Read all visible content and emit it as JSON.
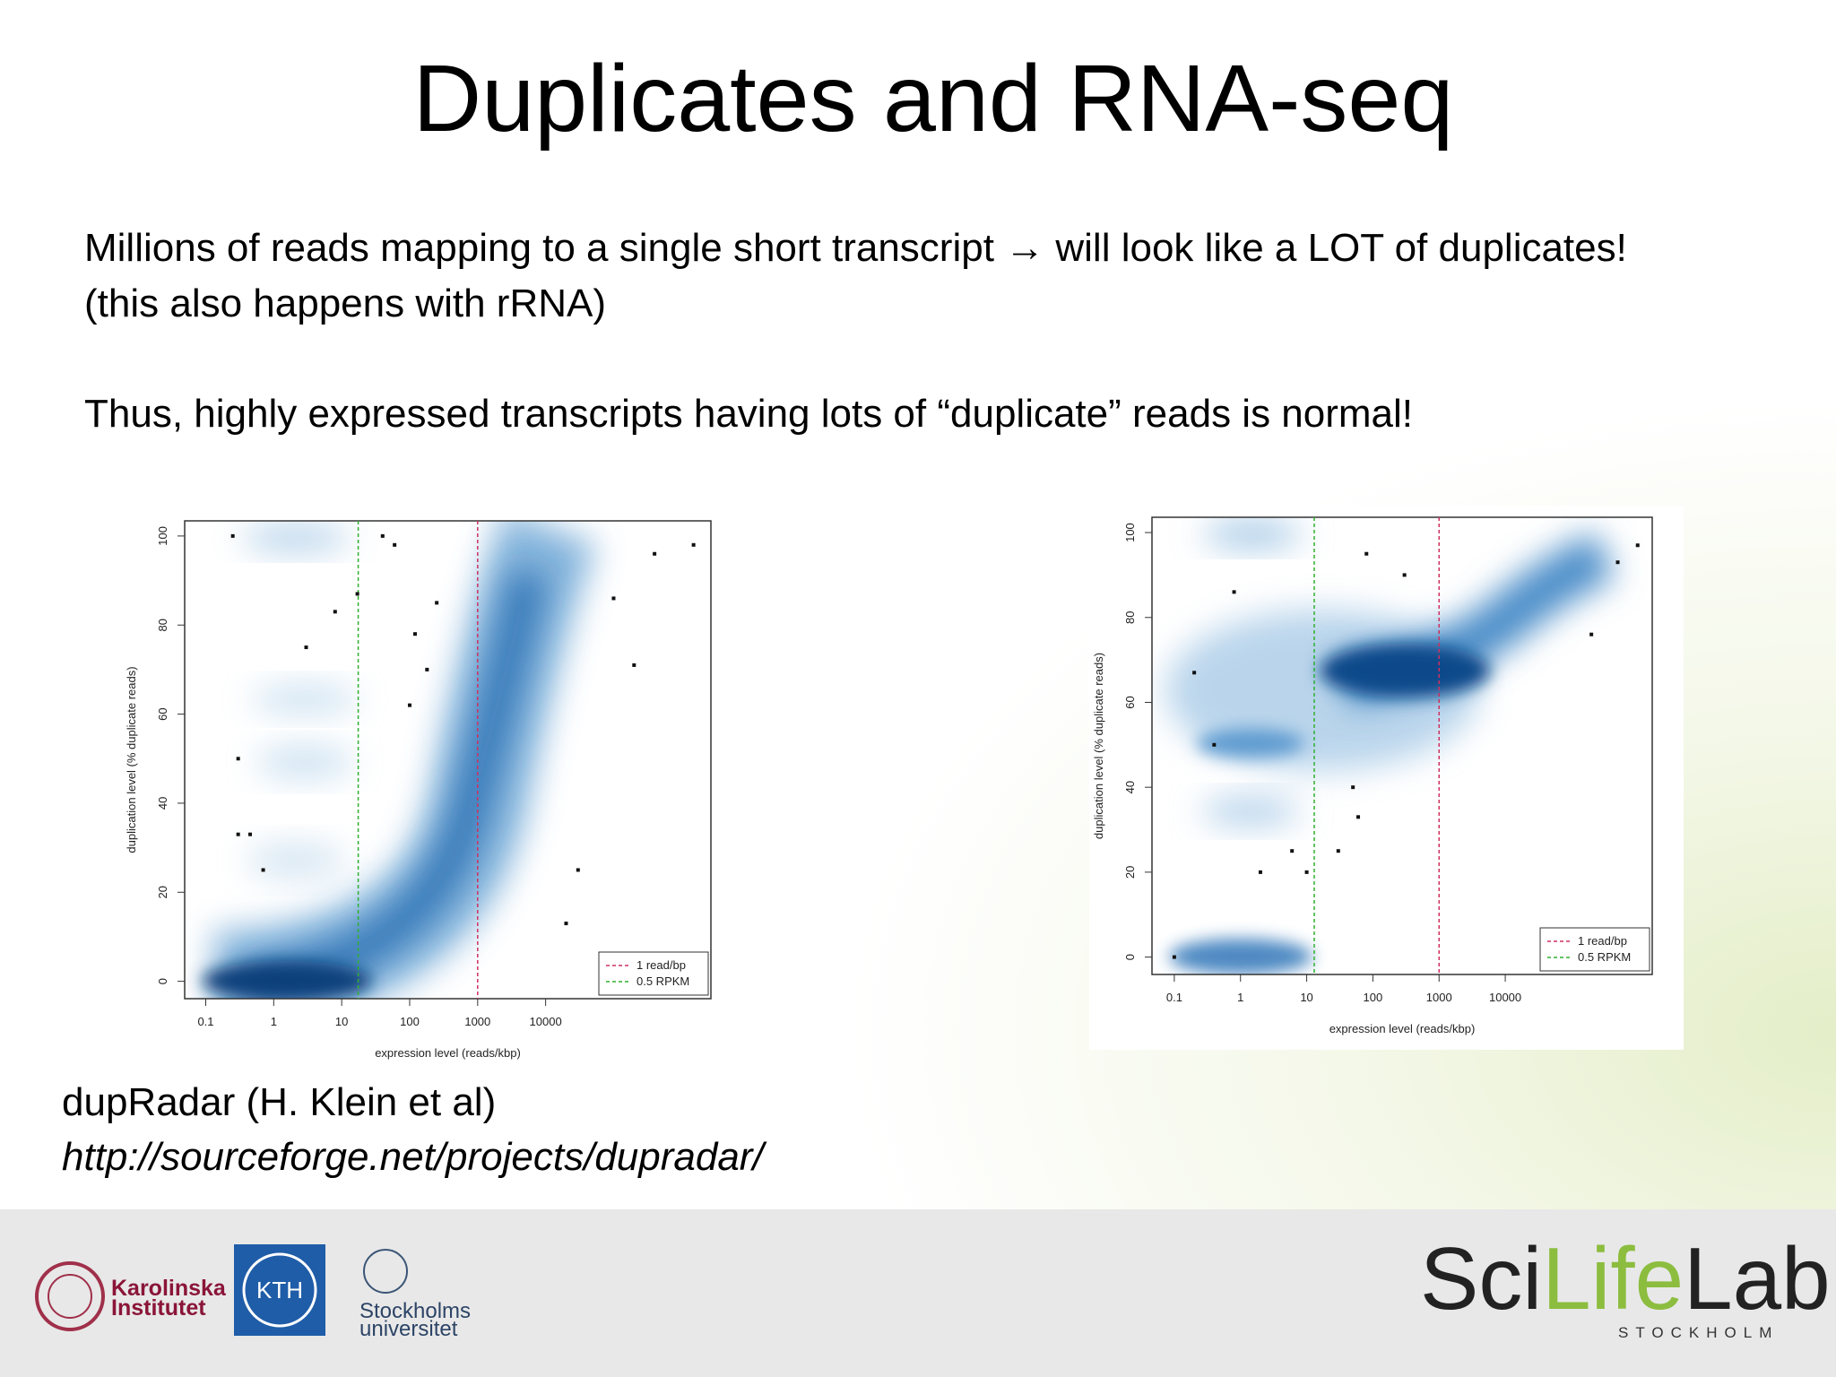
{
  "header": {
    "title": "Duplicates and RNA-seq"
  },
  "body": {
    "lines": [
      "Millions of reads mapping to a single short transcript → will look like a LOT of duplicates!",
      "(this also happens with rRNA)",
      "Thus, highly expressed transcripts having lots of “duplicate” reads is normal!"
    ]
  },
  "charts": [
    {
      "type": "scatter",
      "x_label": "expression level (reads/kbp)",
      "y_label": "duplication level (% duplicate reads)",
      "xlog": true,
      "xlim": [
        0.049,
        2700000
      ],
      "ylim": [
        -3.9,
        103.4
      ],
      "xticks": [
        0.1,
        1,
        10,
        100,
        1000,
        10000
      ],
      "yticks": [
        0,
        20,
        40,
        60,
        80,
        100
      ],
      "vlines": [
        {
          "name": "1 read/bp",
          "x": 1000,
          "color": "#d03060"
        },
        {
          "name": "0.5 RPKM",
          "x": 17.5,
          "color": "#30b030"
        }
      ],
      "points": {
        "color": "#111111",
        "x": [
          0.25,
          3,
          8,
          17,
          40,
          60,
          250,
          120,
          180,
          100,
          0.3,
          0.45,
          0.7,
          30000,
          20000,
          200000,
          100000,
          400000,
          1500000,
          0.3
        ],
        "y": [
          100,
          75,
          83,
          87,
          100,
          98,
          85,
          78,
          70,
          62,
          50,
          33,
          25,
          25,
          13,
          71,
          86,
          96,
          98,
          33
        ]
      }
    },
    {
      "type": "scatter",
      "x_label": "expression level (reads/kbp)",
      "y_label": "duplication level (% duplicate reads)",
      "xlog": true,
      "xlim": [
        0.046,
        1660000
      ],
      "ylim": [
        -4.1,
        103.6
      ],
      "xticks": [
        0.1,
        1,
        10,
        100,
        1000,
        10000
      ],
      "yticks": [
        0,
        20,
        40,
        60,
        80,
        100
      ],
      "vlines": [
        {
          "name": "1 read/bp",
          "x": 1000,
          "color": "#d03060"
        },
        {
          "name": "0.5 RPKM",
          "x": 13,
          "color": "#30b030"
        }
      ],
      "points": {
        "color": "#111111",
        "x": [
          0.8,
          0.2,
          0.4,
          2,
          10,
          50,
          60,
          300,
          80,
          0.1,
          200000,
          500000,
          1000000,
          30,
          6
        ],
        "y": [
          86,
          67,
          50,
          20,
          20,
          40,
          33,
          90,
          95,
          0,
          76,
          93,
          97,
          25,
          25
        ]
      }
    }
  ],
  "citation": {
    "text": "dupRadar (H. Klein et al)",
    "url": "http://sourceforge.net/projects/dupradar/"
  },
  "footer": {
    "karolinska": [
      "Karolinska",
      "Institutet"
    ],
    "kth": "KTH",
    "stockholm_univ": [
      "Stockholms",
      "universitet"
    ],
    "scilifelab": [
      "Sci",
      "Life",
      "Lab"
    ],
    "scilifelab_sub": "STOCKHOLM"
  }
}
